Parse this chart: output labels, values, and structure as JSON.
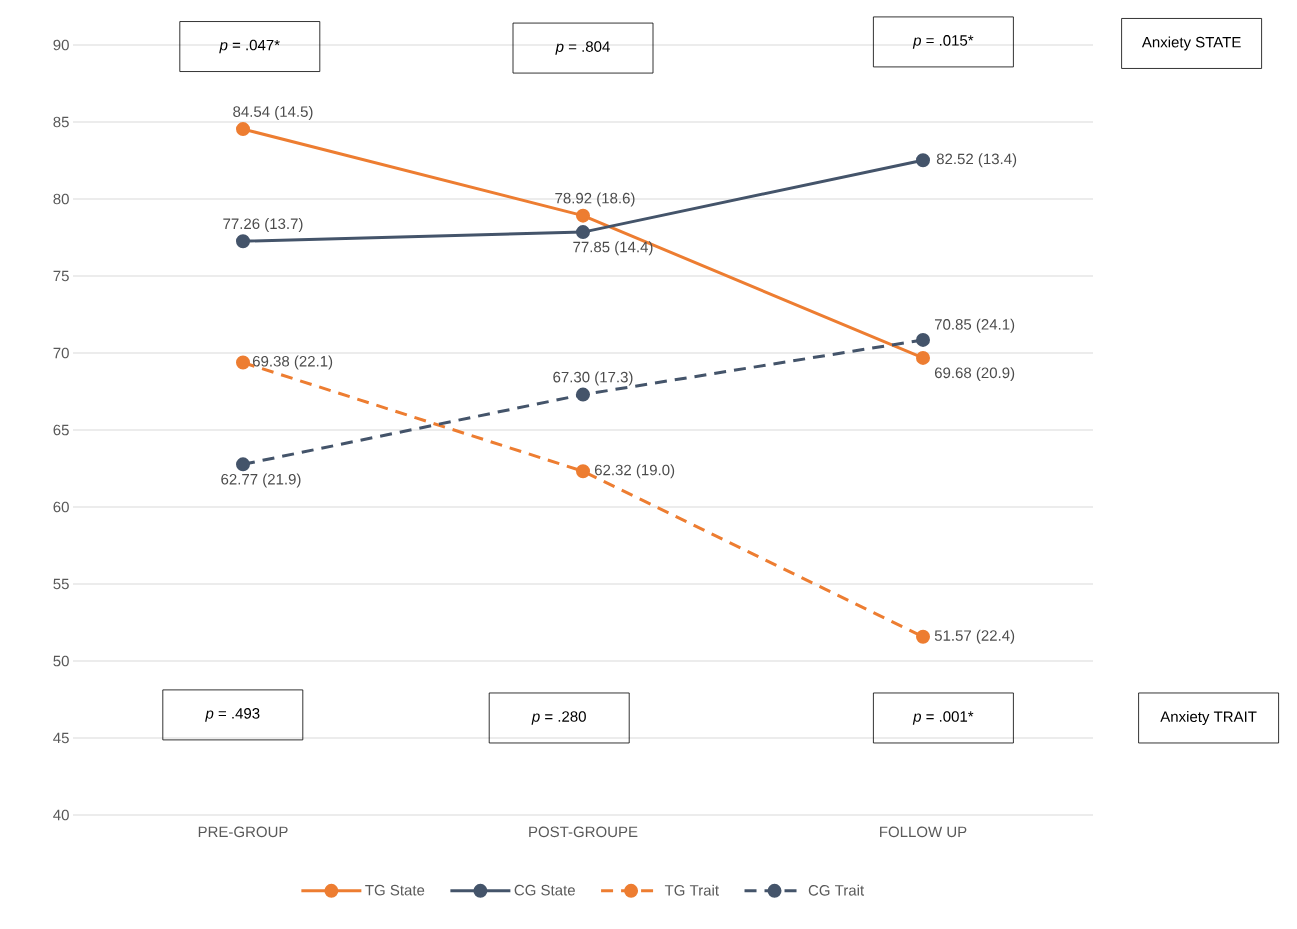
{
  "chart_data": {
    "type": "line",
    "categories": [
      "PRE-GROUP",
      "POST-GROUPE",
      "FOLLOW UP"
    ],
    "series": [
      {
        "name": "TG State",
        "color": "#ed7d31",
        "line_style": "solid",
        "values": [
          84.54,
          78.92,
          69.68
        ],
        "value_labels": [
          "84.54 (14.5)",
          "78.92 (18.6)",
          "69.68 (20.9)"
        ]
      },
      {
        "name": "CG State",
        "color": "#44546a",
        "line_style": "solid",
        "values": [
          77.26,
          77.85,
          82.52
        ],
        "value_labels": [
          "77.26 (13.7)",
          "77.85 (14.4)",
          "82.52 (13.4)"
        ]
      },
      {
        "name": "TG Trait",
        "color": "#ed7d31",
        "line_style": "dashed",
        "values": [
          69.38,
          62.32,
          51.57
        ],
        "value_labels": [
          "69.38 (22.1)",
          "62.32 (19.0)",
          "51.57 (22.4)"
        ]
      },
      {
        "name": "CG Trait",
        "color": "#44546a",
        "line_style": "dashed",
        "values": [
          62.77,
          67.3,
          70.85
        ],
        "value_labels": [
          "62.77 (21.9)",
          "67.30 (17.3)",
          "70.85 (24.1)"
        ]
      }
    ],
    "ylim": [
      40,
      90
    ],
    "yticks": [
      40,
      45,
      50,
      55,
      60,
      65,
      70,
      75,
      80,
      85,
      90
    ],
    "grid": "y",
    "legend": "bottom",
    "marker": "circle",
    "annotations": [
      "*p* = .047*",
      "*p* = .804",
      "*p* = .015*",
      "Anxiety STATE",
      "*p* = .493",
      "*p* = .280",
      "*p* = .001*",
      "Anxiety TRAIT"
    ]
  }
}
